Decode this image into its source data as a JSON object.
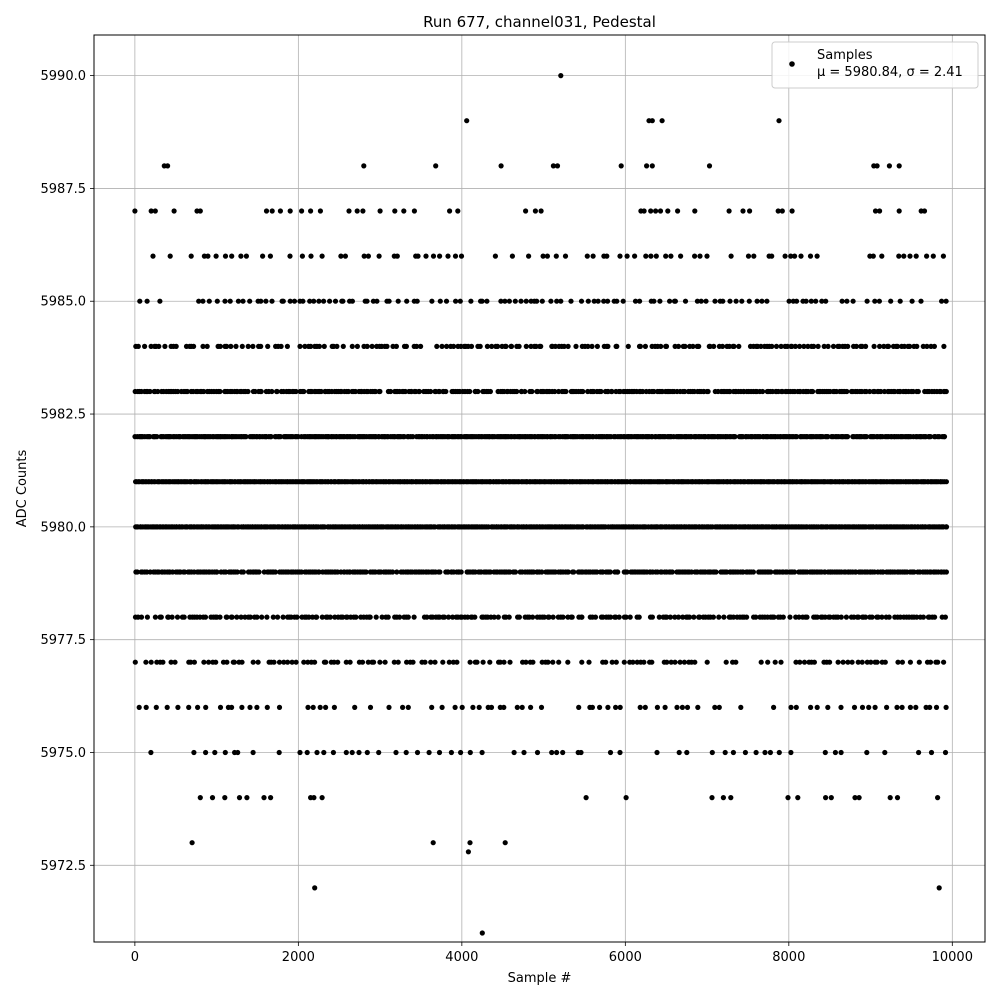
{
  "chart_data": {
    "type": "scatter",
    "title": "Run 677, channel031, Pedestal",
    "xlabel": "Sample #",
    "ylabel": "ADC Counts",
    "xlim": [
      -500,
      10400
    ],
    "ylim": [
      5970.8,
      5990.9
    ],
    "xticks": [
      0,
      2000,
      4000,
      6000,
      8000,
      10000
    ],
    "yticks": [
      5972.5,
      5975.0,
      5977.5,
      5980.0,
      5982.5,
      5985.0,
      5987.5,
      5990.0
    ],
    "xtick_labels": [
      "0",
      "2000",
      "4000",
      "6000",
      "8000",
      "10000"
    ],
    "ytick_labels": [
      "5972.5",
      "5975.0",
      "5977.5",
      "5980.0",
      "5982.5",
      "5985.0",
      "5987.5",
      "5990.0"
    ],
    "grid": true,
    "marker_color": "#000000",
    "legend": {
      "position": "top-right",
      "label": "Samples",
      "stats": "μ = 5980.84, σ = 2.41"
    },
    "n_samples": 10000,
    "series": [
      {
        "name": "Samples",
        "points": [
          [
            4250,
            5971
          ],
          [
            2200,
            5972
          ],
          [
            9840,
            5972
          ],
          [
            700,
            5973
          ],
          [
            3650,
            5973
          ],
          [
            4100,
            5973
          ],
          [
            4530,
            5973
          ],
          [
            5210,
            5990
          ],
          [
            4060,
            5989
          ],
          [
            6290,
            5989
          ],
          [
            6330,
            5989
          ],
          [
            6450,
            5989
          ],
          [
            7880,
            5989
          ],
          [
            360,
            5988
          ],
          [
            400,
            5988
          ],
          [
            2800,
            5988
          ],
          [
            3680,
            5988
          ],
          [
            4480,
            5988
          ],
          [
            5120,
            5988
          ],
          [
            5170,
            5988
          ],
          [
            5950,
            5988
          ],
          [
            6260,
            5988
          ],
          [
            6330,
            5988
          ],
          [
            7030,
            5988
          ],
          [
            9040,
            5988
          ],
          [
            9080,
            5988
          ],
          [
            9230,
            5988
          ],
          [
            9350,
            5988
          ],
          [
            0,
            5987
          ],
          [
            200,
            5987
          ],
          [
            250,
            5987
          ],
          [
            480,
            5987
          ],
          [
            760,
            5987
          ],
          [
            800,
            5987
          ],
          [
            1610,
            5987
          ],
          [
            1680,
            5987
          ],
          [
            1780,
            5987
          ],
          [
            1900,
            5987
          ],
          [
            2040,
            5987
          ],
          [
            2150,
            5987
          ],
          [
            2270,
            5987
          ],
          [
            2620,
            5987
          ],
          [
            2720,
            5987
          ],
          [
            2790,
            5987
          ],
          [
            3000,
            5987
          ],
          [
            3180,
            5987
          ],
          [
            3290,
            5987
          ],
          [
            3420,
            5987
          ],
          [
            3850,
            5987
          ],
          [
            3950,
            5987
          ],
          [
            4780,
            5987
          ],
          [
            4900,
            5987
          ],
          [
            4970,
            5987
          ],
          [
            6190,
            5987
          ],
          [
            6230,
            5987
          ],
          [
            6310,
            5987
          ],
          [
            6370,
            5987
          ],
          [
            6430,
            5987
          ],
          [
            6520,
            5987
          ],
          [
            6640,
            5987
          ],
          [
            6850,
            5987
          ],
          [
            7270,
            5987
          ],
          [
            7440,
            5987
          ],
          [
            7520,
            5987
          ],
          [
            7870,
            5987
          ],
          [
            7920,
            5987
          ],
          [
            8040,
            5987
          ],
          [
            9060,
            5987
          ],
          [
            9110,
            5987
          ],
          [
            9350,
            5987
          ],
          [
            9620,
            5987
          ],
          [
            9660,
            5987
          ],
          [
            4080,
            5972.8
          ],
          [
            800,
            5974
          ],
          [
            950,
            5974
          ],
          [
            1100,
            5974
          ],
          [
            1280,
            5974
          ],
          [
            1370,
            5974
          ],
          [
            1580,
            5974
          ],
          [
            1660,
            5974
          ],
          [
            2150,
            5974
          ],
          [
            2190,
            5974
          ],
          [
            2290,
            5974
          ],
          [
            5520,
            5974
          ],
          [
            6010,
            5974
          ],
          [
            7060,
            5974
          ],
          [
            7200,
            5974
          ],
          [
            7290,
            5974
          ],
          [
            7990,
            5974
          ],
          [
            8110,
            5974
          ],
          [
            8450,
            5974
          ],
          [
            8520,
            5974
          ],
          [
            8810,
            5974
          ],
          [
            8860,
            5974
          ],
          [
            9240,
            5974
          ],
          [
            9330,
            5974
          ],
          [
            9820,
            5974
          ]
        ]
      }
    ],
    "band_levels": [
      5975,
      5976,
      5977,
      5978,
      5979,
      5980,
      5981,
      5982,
      5983,
      5984,
      5985,
      5986
    ]
  }
}
